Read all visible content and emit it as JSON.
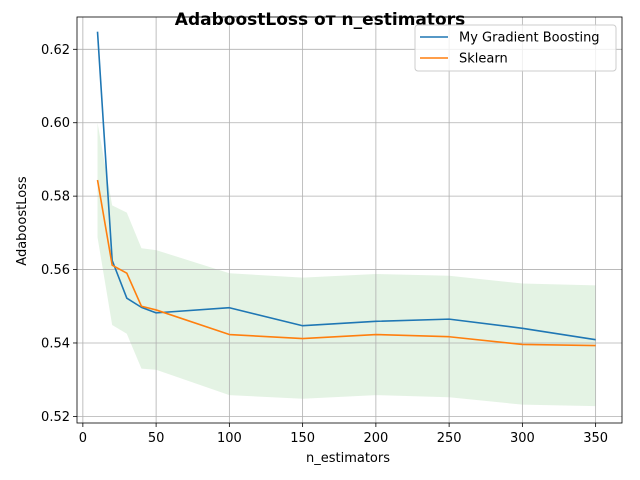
{
  "chart_data": {
    "type": "line",
    "title": "AdaboostLoss от n_estimators",
    "xlabel": "n_estimators",
    "ylabel": "AdaboostLoss",
    "xlim": [
      -4,
      368
    ],
    "ylim": [
      0.5182,
      0.6288
    ],
    "xticks": [
      0,
      50,
      100,
      150,
      200,
      250,
      300,
      350
    ],
    "xtick_labels": [
      "0",
      "50",
      "100",
      "150",
      "200",
      "250",
      "300",
      "350"
    ],
    "yticks": [
      0.52,
      0.54,
      0.56,
      0.58,
      0.6,
      0.62
    ],
    "ytick_labels": [
      "0.52",
      "0.54",
      "0.56",
      "0.58",
      "0.60",
      "0.62"
    ],
    "grid": true,
    "legend_position": "top-right",
    "x": [
      10,
      20,
      30,
      40,
      50,
      100,
      150,
      200,
      250,
      300,
      350
    ],
    "series": [
      {
        "name": "My Gradient Boosting",
        "color": "#1f77b4",
        "values": [
          0.6248,
          0.5625,
          0.5522,
          0.5497,
          0.5482,
          0.5496,
          0.5447,
          0.5459,
          0.5465,
          0.544,
          0.5409
        ]
      },
      {
        "name": "Sklearn",
        "color": "#ff7f0e",
        "values": [
          0.5844,
          0.5612,
          0.559,
          0.55,
          0.549,
          0.5423,
          0.5412,
          0.5423,
          0.5417,
          0.5396,
          0.5393
        ],
        "band": {
          "color": "#2ca02c",
          "opacity": 0.13,
          "upper": [
            0.6,
            0.5775,
            0.5755,
            0.5658,
            0.5653,
            0.559,
            0.5578,
            0.5588,
            0.5583,
            0.5562,
            0.5557
          ],
          "lower": [
            0.5688,
            0.5449,
            0.5425,
            0.533,
            0.5327,
            0.5258,
            0.5248,
            0.5258,
            0.5252,
            0.5232,
            0.5228
          ]
        }
      }
    ]
  }
}
